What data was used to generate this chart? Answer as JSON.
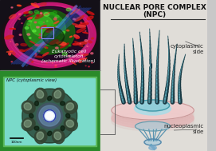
{
  "title_line1": "NUCLEAR PORE COMPLEX",
  "title_line2": "(NPC)",
  "label_cytoplasmic": "cytoplasmic\nside",
  "label_nucleoplasmic": "nucleoplasmic\nside",
  "label_npc_view": "NPC (cytoplasmic view)",
  "label_eukaryotic": "Eukaryotic cell\ncytoskeleton\n(schematic illustration)",
  "fig_width": 2.71,
  "fig_height": 1.89,
  "dpi": 100,
  "title_fontsize": 6.5,
  "label_fontsize": 5.0,
  "small_fontsize": 4.2
}
